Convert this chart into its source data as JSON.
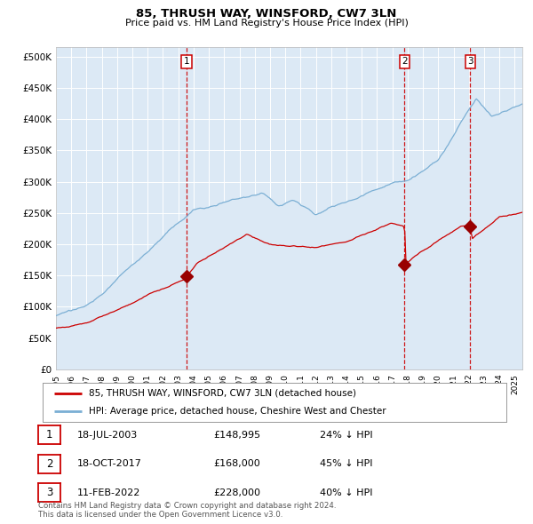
{
  "title": "85, THRUSH WAY, WINSFORD, CW7 3LN",
  "subtitle": "Price paid vs. HM Land Registry's House Price Index (HPI)",
  "ylabel_ticks": [
    "£0",
    "£50K",
    "£100K",
    "£150K",
    "£200K",
    "£250K",
    "£300K",
    "£350K",
    "£400K",
    "£450K",
    "£500K"
  ],
  "ytick_vals": [
    0,
    50000,
    100000,
    150000,
    200000,
    250000,
    300000,
    350000,
    400000,
    450000,
    500000
  ],
  "ylim": [
    0,
    515000
  ],
  "xlim_start": 1995.0,
  "xlim_end": 2025.5,
  "bg_color": "#dce9f5",
  "grid_color": "#ffffff",
  "hpi_color": "#7bafd4",
  "price_color": "#cc0000",
  "vline_color": "#cc0000",
  "marker_color": "#990000",
  "transaction1_x": 2003.54,
  "transaction1_y": 148995,
  "transaction2_x": 2017.8,
  "transaction2_y": 168000,
  "transaction3_x": 2022.1,
  "transaction3_y": 228000,
  "legend_label_price": "85, THRUSH WAY, WINSFORD, CW7 3LN (detached house)",
  "legend_label_hpi": "HPI: Average price, detached house, Cheshire West and Chester",
  "table_rows": [
    {
      "num": "1",
      "date": "18-JUL-2003",
      "price": "£148,995",
      "hpi": "24% ↓ HPI"
    },
    {
      "num": "2",
      "date": "18-OCT-2017",
      "price": "£168,000",
      "hpi": "45% ↓ HPI"
    },
    {
      "num": "3",
      "date": "11-FEB-2022",
      "price": "£228,000",
      "hpi": "40% ↓ HPI"
    }
  ],
  "footer": "Contains HM Land Registry data © Crown copyright and database right 2024.\nThis data is licensed under the Open Government Licence v3.0.",
  "xtick_years": [
    1995,
    1996,
    1997,
    1998,
    1999,
    2000,
    2001,
    2002,
    2003,
    2004,
    2005,
    2006,
    2007,
    2008,
    2009,
    2010,
    2011,
    2012,
    2013,
    2014,
    2015,
    2016,
    2017,
    2018,
    2019,
    2020,
    2021,
    2022,
    2023,
    2024,
    2025
  ]
}
